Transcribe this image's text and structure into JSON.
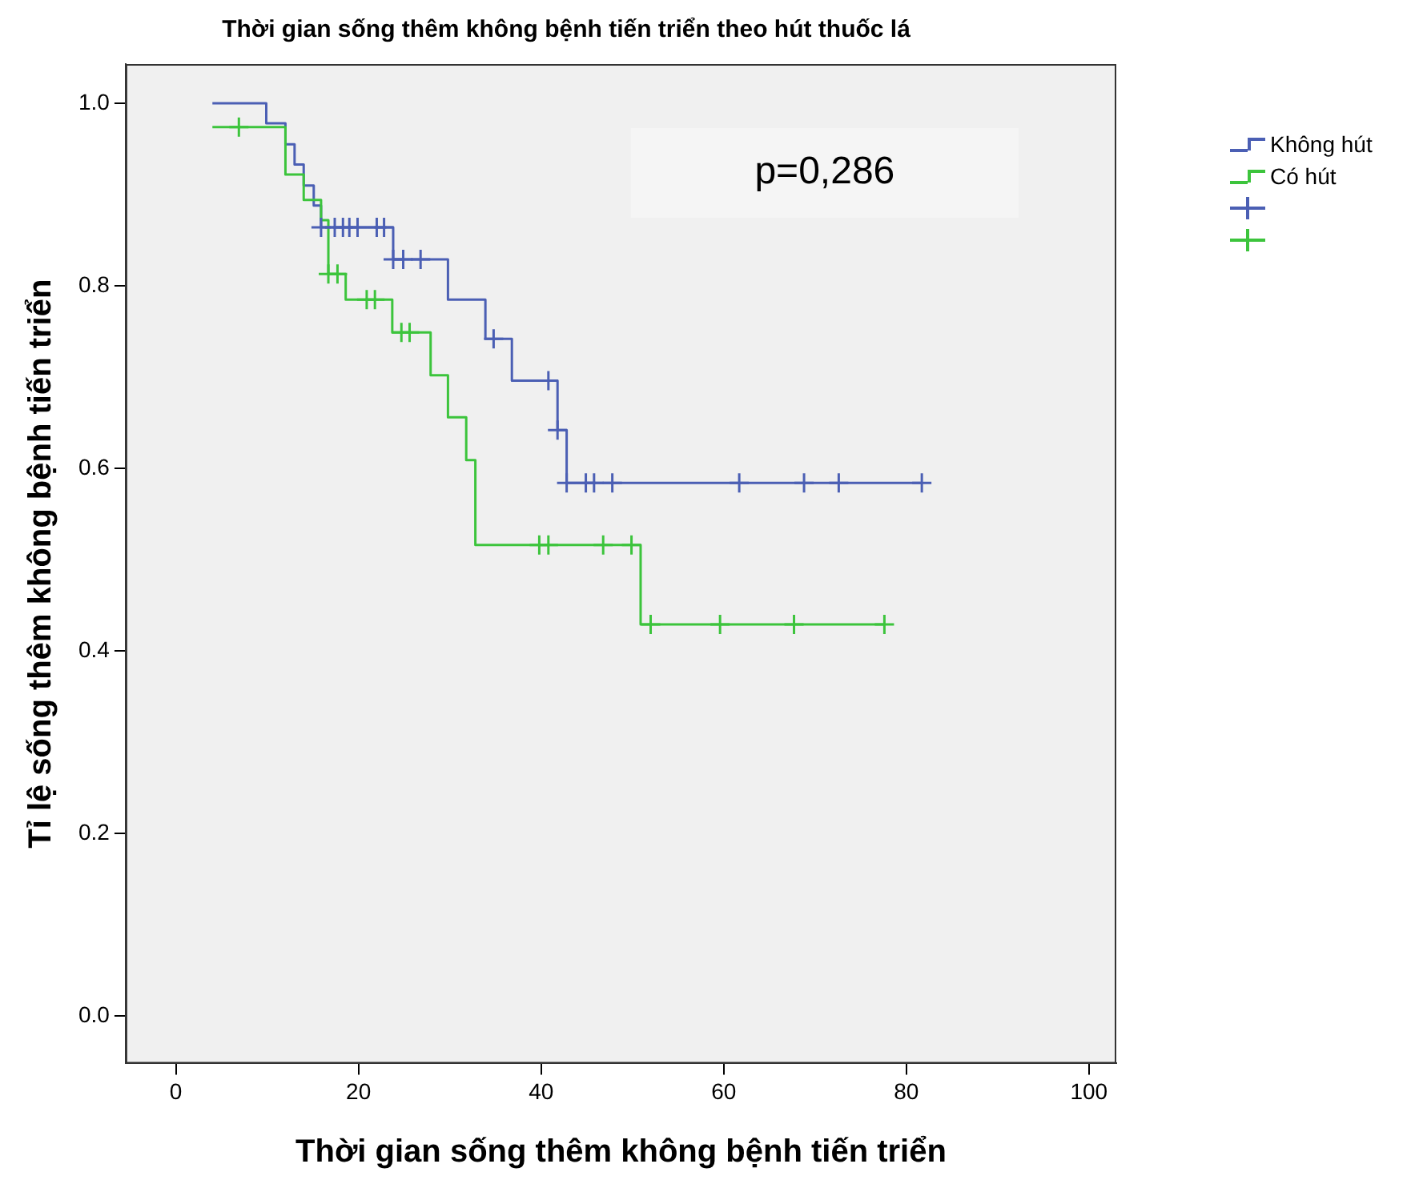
{
  "chart_data": {
    "type": "step",
    "title": "Thời gian sống thêm không bệnh tiến triển theo hút thuốc lá",
    "xlabel": "Thời gian sống thêm không bệnh tiến triển",
    "ylabel": "Tỉ lệ sống thêm không bệnh tiến triển",
    "xlim": [
      -5.5,
      103
    ],
    "xticks": [
      0,
      20,
      40,
      60,
      80,
      100
    ],
    "ylim": [
      -0.052,
      1.043
    ],
    "yticks": [
      {
        "value": 0,
        "label": "0.0"
      },
      {
        "value": 0.2,
        "label": "0.2"
      },
      {
        "value": 0.4,
        "label": "0.4"
      },
      {
        "value": 0.6,
        "label": "0.6"
      },
      {
        "value": 0.8,
        "label": "0.8"
      },
      {
        "value": 1,
        "label": "1.0"
      }
    ],
    "grid": false,
    "legend": "top right",
    "annotations": [
      "p=0,286"
    ],
    "series": [
      {
        "name": "Không hút",
        "marker": "none",
        "color": "#4b5fb4",
        "x": [
          4,
          9.9,
          12,
          13,
          14,
          15.1,
          15.9,
          23.8,
          29.8,
          33.9,
          36.8,
          41.8,
          42.8,
          81.7
        ],
        "values": [
          1,
          0.978,
          0.955,
          0.933,
          0.91,
          0.888,
          0.864,
          0.829,
          0.785,
          0.742,
          0.696,
          0.642,
          0.584,
          0.584
        ]
      },
      {
        "name": "Có hút",
        "marker": "none",
        "color": "#3cc43c",
        "x": [
          4,
          12,
          14,
          15.9,
          16.7,
          18.6,
          23.7,
          27.9,
          29.8,
          31.8,
          32.8,
          50.9,
          77.6
        ],
        "values": [
          0.974,
          0.922,
          0.894,
          0.872,
          0.813,
          0.785,
          0.749,
          0.702,
          0.656,
          0.609,
          0.516,
          0.429,
          0.429
        ]
      },
      {
        "type": "scatter",
        "marker": "cross",
        "color": "#4b5fb4",
        "x": [
          15.9,
          17.4,
          18.3,
          19,
          19.9,
          22,
          22.8,
          23.8,
          24.9,
          26.8,
          34.8,
          40.8,
          41.8,
          42.8,
          44.9,
          45.8,
          47.8,
          61.7,
          68.8,
          72.6,
          81.7
        ],
        "values": [
          0.864,
          0.864,
          0.864,
          0.864,
          0.864,
          0.864,
          0.864,
          0.829,
          0.829,
          0.829,
          0.742,
          0.696,
          0.642,
          0.584,
          0.584,
          0.584,
          0.584,
          0.584,
          0.584,
          0.584,
          0.584
        ]
      },
      {
        "type": "scatter",
        "marker": "cross",
        "color": "#3cc43c",
        "x": [
          6.9,
          16.7,
          17.7,
          20.9,
          21.8,
          24.7,
          25.6,
          39.8,
          40.8,
          46.8,
          49.9,
          52,
          59.6,
          67.7,
          77.6
        ],
        "values": [
          0.974,
          0.813,
          0.813,
          0.785,
          0.785,
          0.749,
          0.749,
          0.516,
          0.516,
          0.516,
          0.516,
          0.429,
          0.429,
          0.429,
          0.429
        ]
      }
    ]
  }
}
